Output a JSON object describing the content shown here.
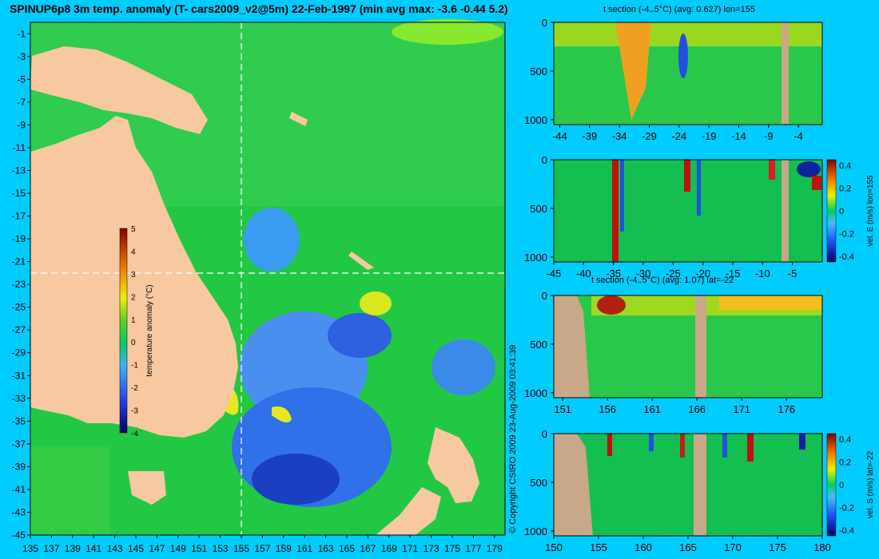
{
  "main_title": "SPINUP6p8 3m temp. anomaly (T- cars2009_v2@5m) 22-Feb-1997 (min avg max: -3.6 -0.44 5.2)",
  "copyright": "© Copyright CSIRO 2009   23-Aug-2009 03:41:39",
  "colors": {
    "background": "#00ccff",
    "land": "#f8c8a0",
    "section_land": "#c8a888",
    "crosshair": "#ffffff"
  },
  "chart_data": [
    {
      "id": "map",
      "type": "heatmap",
      "title": "SPINUP6p8 3m temp. anomaly (T- cars2009_v2@5m) 22-Feb-1997 (min avg max: -3.6 -0.44 5.2)",
      "x_ticks": [
        "135",
        "137",
        "139",
        "141",
        "143",
        "145",
        "147",
        "149",
        "151",
        "153",
        "155",
        "157",
        "159",
        "161",
        "163",
        "165",
        "167",
        "169",
        "171",
        "173",
        "175",
        "177",
        "179"
      ],
      "y_ticks": [
        "-1",
        "-3",
        "-5",
        "-7",
        "-9",
        "-11",
        "-13",
        "-15",
        "-17",
        "-19",
        "-21",
        "-23",
        "-25",
        "-27",
        "-29",
        "-31",
        "-33",
        "-35",
        "-37",
        "-39",
        "-41",
        "-43",
        "-45"
      ],
      "xlim": [
        135,
        180
      ],
      "ylim": [
        -45,
        0
      ],
      "crosshair": {
        "lon": 155,
        "lat": -22
      },
      "colorbar": {
        "label": "temperature anomaly (°C)",
        "ticks": [
          "5",
          "4",
          "3",
          "2",
          "1",
          "0",
          "-1",
          "-2",
          "-3",
          "-4"
        ],
        "range": [
          -4,
          5
        ]
      },
      "stats": {
        "min": -3.6,
        "avg": -0.44,
        "max": 5.2
      }
    },
    {
      "id": "t_section_lon",
      "type": "heatmap",
      "title": "t section (-4..5°C) (avg: 0.627) lon=155",
      "x_ticks": [
        "-44",
        "-39",
        "-34",
        "-29",
        "-24",
        "-19",
        "-14",
        "-9",
        "-4"
      ],
      "y_ticks": [
        "0",
        "500",
        "1000"
      ],
      "xlim": [
        -45,
        0
      ],
      "ylim": [
        1050,
        0
      ]
    },
    {
      "id": "vel_e_section",
      "type": "heatmap",
      "title": "",
      "x_ticks": [
        "-45",
        "-40",
        "-35",
        "-30",
        "-25",
        "-20",
        "-15",
        "-10",
        "-5"
      ],
      "y_ticks": [
        "0",
        "500",
        "1000"
      ],
      "xlim": [
        -45,
        0
      ],
      "ylim": [
        1050,
        0
      ],
      "colorbar": {
        "label": "vel. E (m/s) lon=155",
        "ticks": [
          "0.4",
          "0.2",
          "0",
          "-0.2",
          "-0.4"
        ],
        "range": [
          -0.45,
          0.45
        ]
      }
    },
    {
      "id": "t_section_lat",
      "type": "heatmap",
      "title": "t section (-4..5°C) (avg: 1.07) lat=-22",
      "x_ticks": [
        "151",
        "156",
        "161",
        "166",
        "171",
        "176"
      ],
      "y_ticks": [
        "0",
        "500",
        "1000"
      ],
      "xlim": [
        150,
        180
      ],
      "ylim": [
        1050,
        0
      ]
    },
    {
      "id": "vel_s_section",
      "type": "heatmap",
      "title": "",
      "x_ticks": [
        "150",
        "155",
        "160",
        "165",
        "170",
        "175",
        "180"
      ],
      "y_ticks": [
        "0",
        "500",
        "1000"
      ],
      "xlim": [
        150,
        180
      ],
      "ylim": [
        1050,
        0
      ],
      "colorbar": {
        "label": "vel. S (m/s) lat=-22",
        "ticks": [
          "0.4",
          "0.2",
          "0",
          "-0.2",
          "-0.4"
        ],
        "range": [
          -0.45,
          0.45
        ]
      }
    }
  ]
}
